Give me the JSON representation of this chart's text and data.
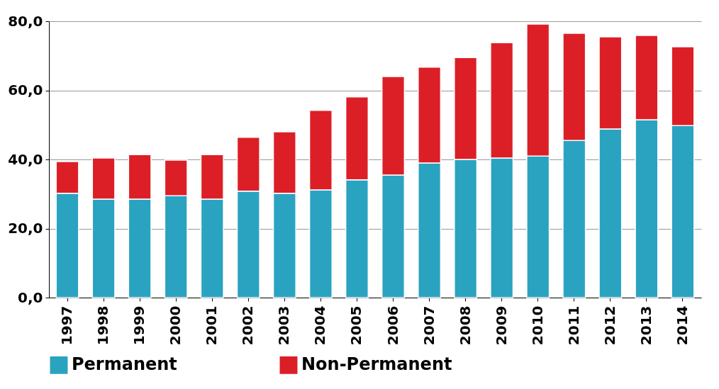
{
  "chart_data": {
    "type": "bar",
    "stacked": true,
    "categories": [
      "1997",
      "1998",
      "1999",
      "2000",
      "2001",
      "2002",
      "2003",
      "2004",
      "2005",
      "2006",
      "2007",
      "2008",
      "2009",
      "2010",
      "2011",
      "2012",
      "2013",
      "2014"
    ],
    "series": [
      {
        "name": "Permanent",
        "color": "#2aa3c1",
        "values": [
          30.2,
          28.5,
          28.5,
          29.5,
          28.5,
          30.8,
          30.2,
          31.2,
          34.1,
          35.5,
          39.0,
          40.0,
          40.4,
          41.0,
          45.5,
          48.8,
          51.5,
          49.8
        ]
      },
      {
        "name": "Non-Permanent",
        "color": "#dc1f26",
        "values": [
          9.2,
          11.9,
          12.9,
          10.3,
          12.9,
          15.6,
          17.8,
          23.0,
          24.0,
          28.5,
          27.7,
          29.5,
          33.4,
          38.2,
          31.0,
          26.7,
          24.4,
          22.8
        ]
      }
    ],
    "ylim": [
      0,
      80
    ],
    "yticks": [
      {
        "value": 0,
        "label": "0,0"
      },
      {
        "value": 20,
        "label": "20,0"
      },
      {
        "value": 40,
        "label": "40,0"
      },
      {
        "value": 60,
        "label": "60,0"
      },
      {
        "value": 80,
        "label": "80,0"
      }
    ],
    "grid": "y",
    "legend": "bottom"
  }
}
